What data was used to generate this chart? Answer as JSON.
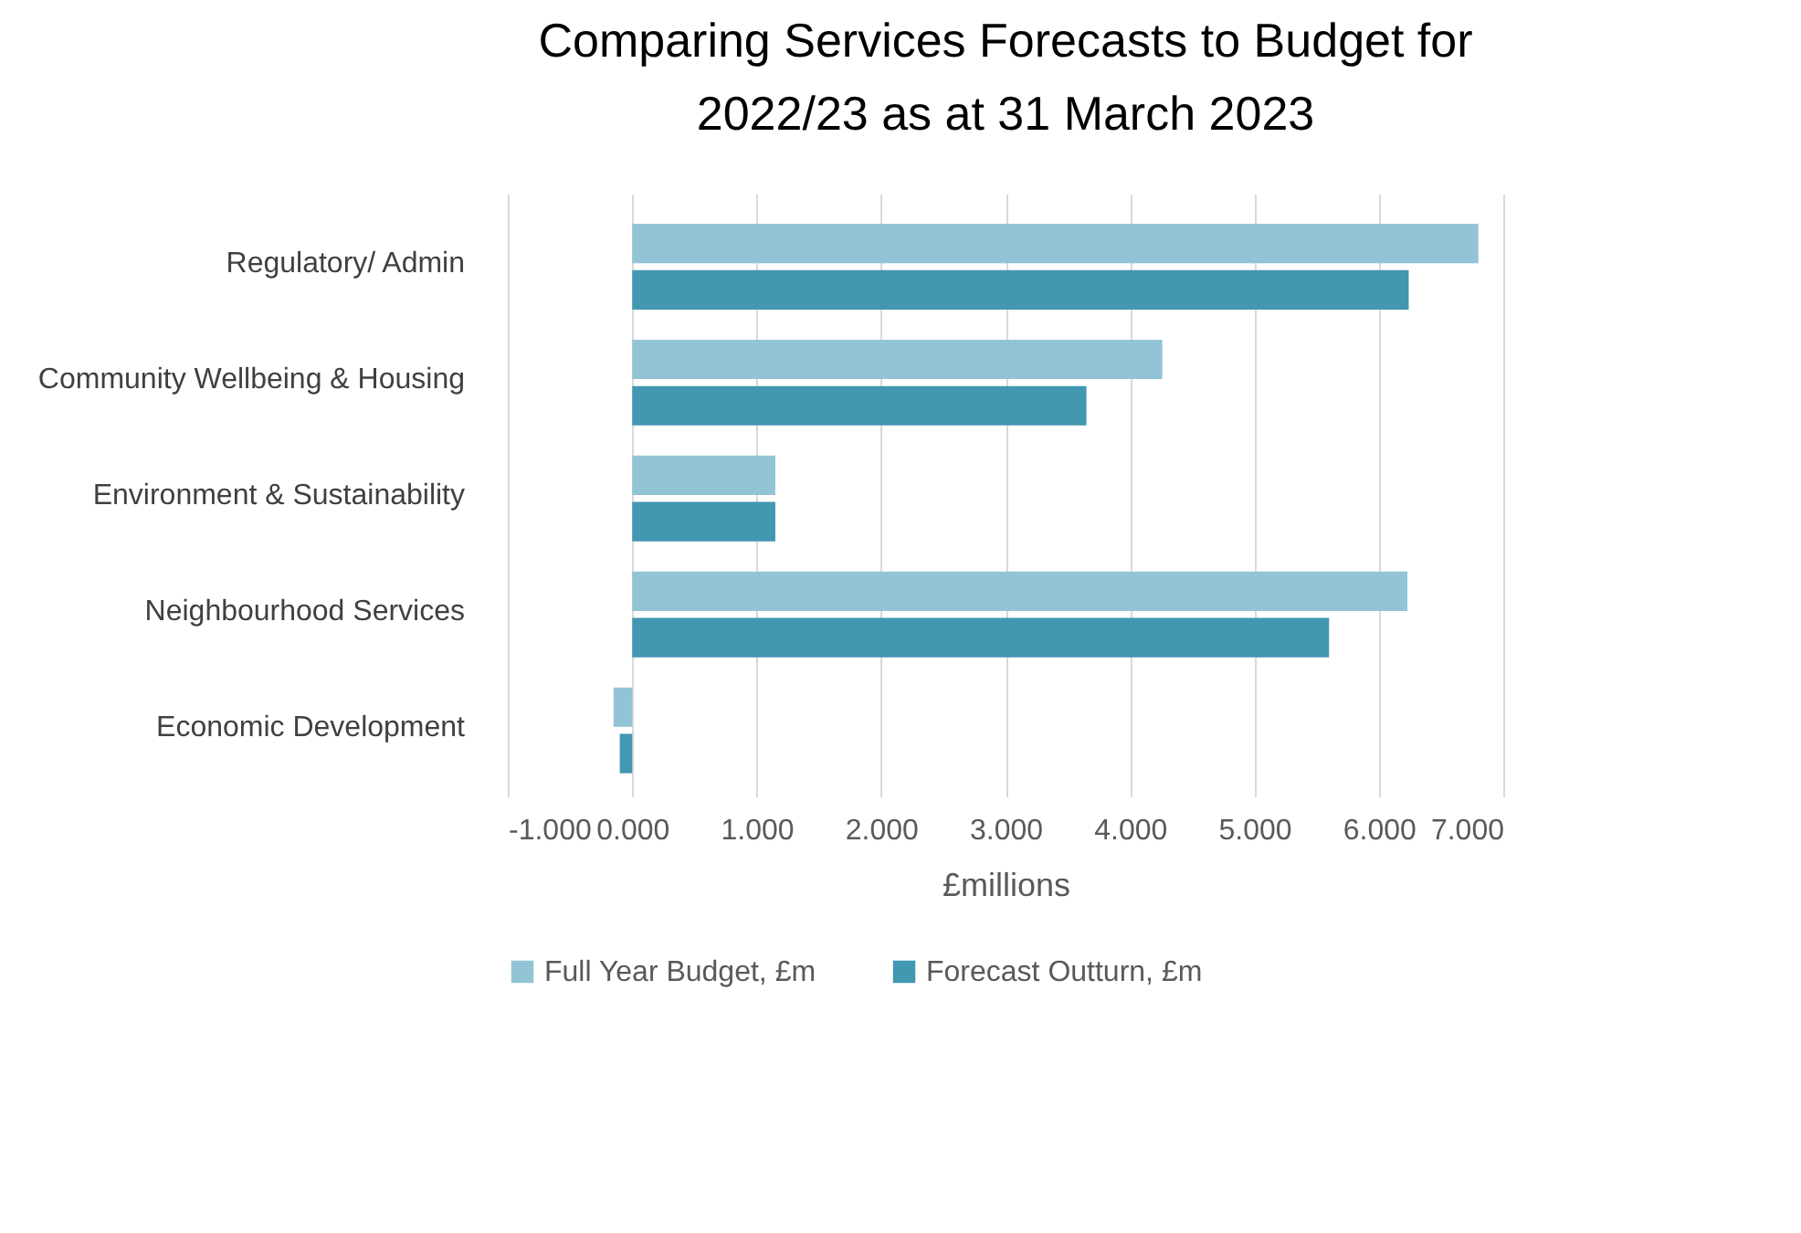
{
  "chart_data": {
    "type": "bar",
    "orientation": "horizontal",
    "title": "Comparing Services Forecasts to Budget for 2022/23 as at 31 March 2023",
    "xlabel": "£millions",
    "categories": [
      "Regulatory/ Admin",
      "Community Wellbeing & Housing",
      "Environment & Sustainability",
      "Neighbourhood Services",
      "Economic Development"
    ],
    "series": [
      {
        "name": "Full Year Budget, £m",
        "color": "#93c4d6",
        "values": [
          6.8,
          4.26,
          1.15,
          6.23,
          -0.15
        ]
      },
      {
        "name": "Forecast Outturn, £m",
        "color": "#4297b1",
        "values": [
          6.24,
          3.65,
          1.15,
          5.6,
          -0.1
        ]
      }
    ],
    "xlim": [
      -1,
      7
    ],
    "xticks": [
      {
        "value": -1,
        "label": "-1.000"
      },
      {
        "value": 0,
        "label": "0.000"
      },
      {
        "value": 1,
        "label": "1.000"
      },
      {
        "value": 2,
        "label": "2.000"
      },
      {
        "value": 3,
        "label": "3.000"
      },
      {
        "value": 4,
        "label": "4.000"
      },
      {
        "value": 5,
        "label": "5.000"
      },
      {
        "value": 6,
        "label": "6.000"
      },
      {
        "value": 7,
        "label": "7.000"
      }
    ],
    "grid": "x",
    "legend": "bottom"
  }
}
